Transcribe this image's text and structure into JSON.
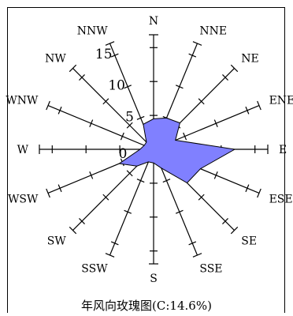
{
  "chart_data": {
    "type": "radar",
    "title": "年风向玫瑰图(C:14.6%)",
    "directions": [
      "N",
      "NNE",
      "NE",
      "ENE",
      "E",
      "ESE",
      "SE",
      "SSE",
      "S",
      "SSW",
      "SW",
      "WSW",
      "W",
      "WNW",
      "NW",
      "NNW"
    ],
    "radial_ticks": [
      0,
      5,
      10,
      15
    ],
    "radial_max": 15,
    "series": [
      {
        "values": [
          4.5,
          5.0,
          5.5,
          3.5,
          12.0,
          7.5,
          7.0,
          3.0,
          2.0,
          2.0,
          3.5,
          5.5,
          2.0,
          1.5,
          1.5,
          4.0
        ]
      }
    ],
    "fill_color": "#8080ff",
    "outline_color": "#000000"
  }
}
